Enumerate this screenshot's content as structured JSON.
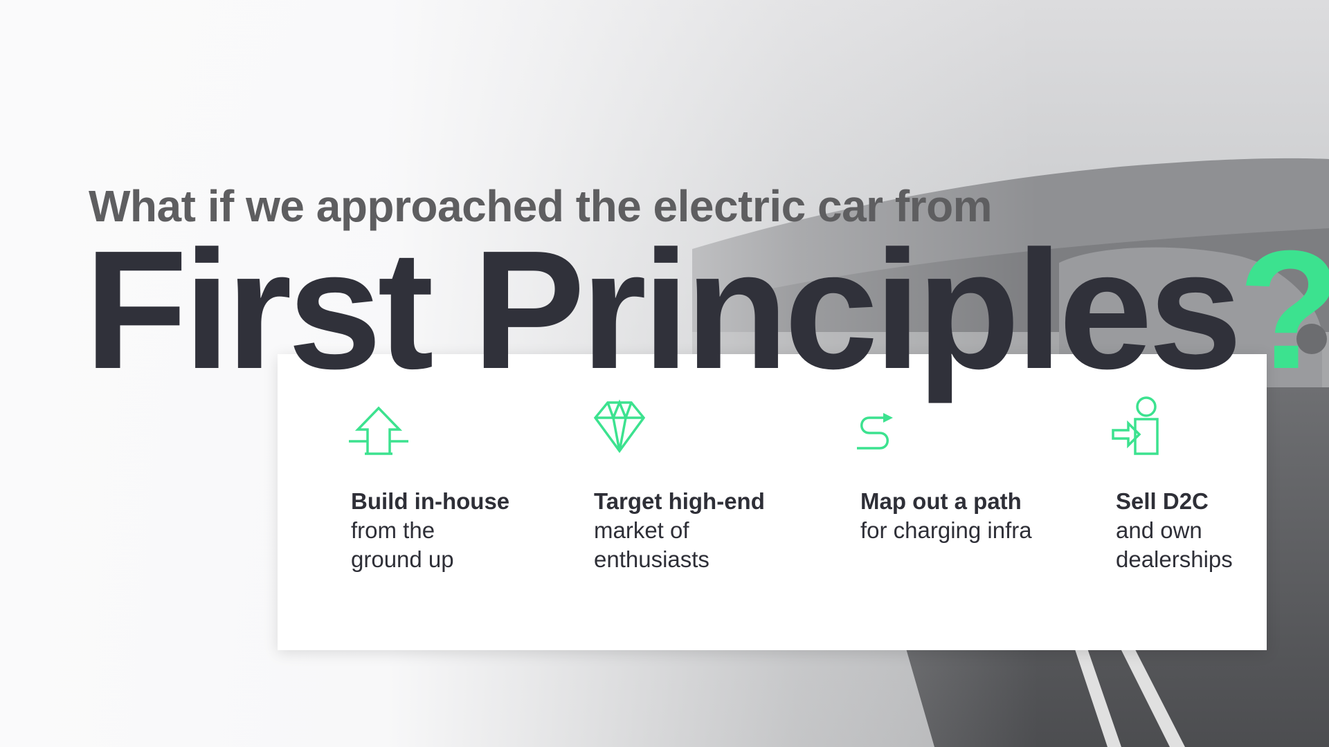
{
  "slide": {
    "kicker": "What if we approached the electric car from",
    "title": "First Principles",
    "title_mark": "?",
    "accent_color": "#3ce28f",
    "title_color": "#30313a",
    "kicker_color": "#5e5e60",
    "background": "grayscale photo of a car on a road with hills"
  },
  "features": [
    {
      "icon": "arrow-up-icon",
      "head": "Build in-house",
      "body": "from the\nground up"
    },
    {
      "icon": "diamond-icon",
      "head": "Target high-end",
      "body": "market of\nenthusiasts"
    },
    {
      "icon": "route-icon",
      "head": "Map out a path",
      "body": "for charging infra"
    },
    {
      "icon": "enter-door-icon",
      "head": "Sell D2C",
      "body": "and own\ndealerships"
    }
  ]
}
